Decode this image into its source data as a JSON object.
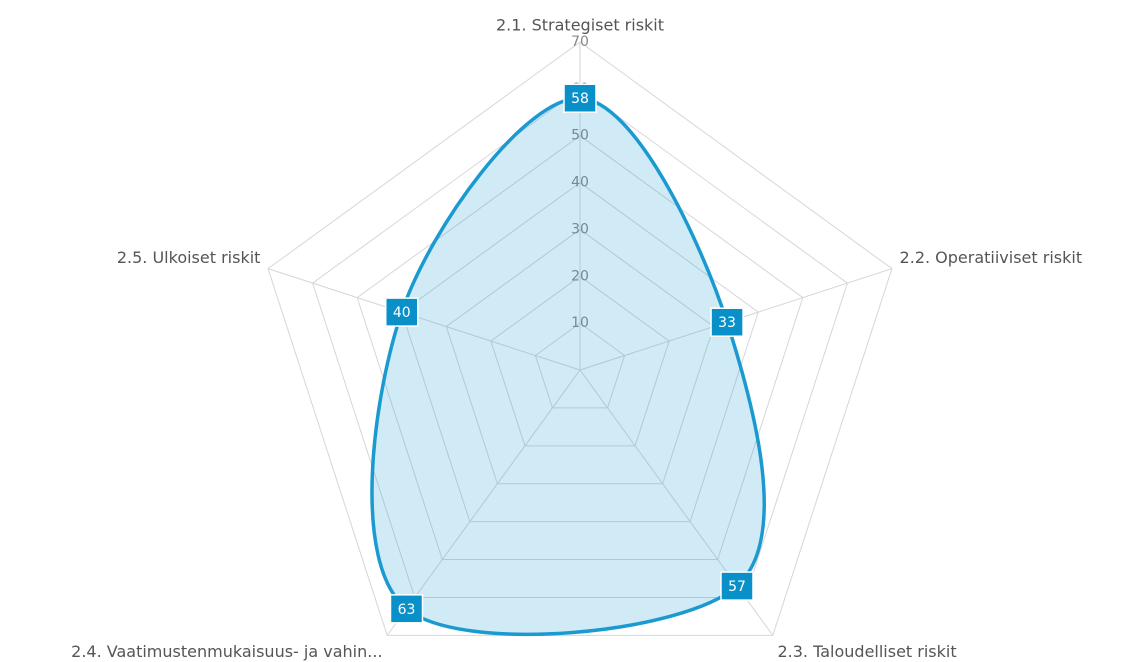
{
  "chart_data": {
    "type": "radar",
    "categories": [
      "2.1. Strategiset riskit",
      "2.2. Operatiiviset riskit",
      "2.3. Taloudelliset riskit",
      "2.4. Vaatimustenmukaisuus- ja vahin...",
      "2.5. Ulkoiset riskit"
    ],
    "values": [
      58,
      33,
      57,
      63,
      40
    ],
    "color": "#1a9ad0",
    "ylim": [
      0,
      70
    ],
    "yticks": [
      10,
      20,
      30,
      40,
      50,
      60,
      70
    ],
    "grid": true
  }
}
